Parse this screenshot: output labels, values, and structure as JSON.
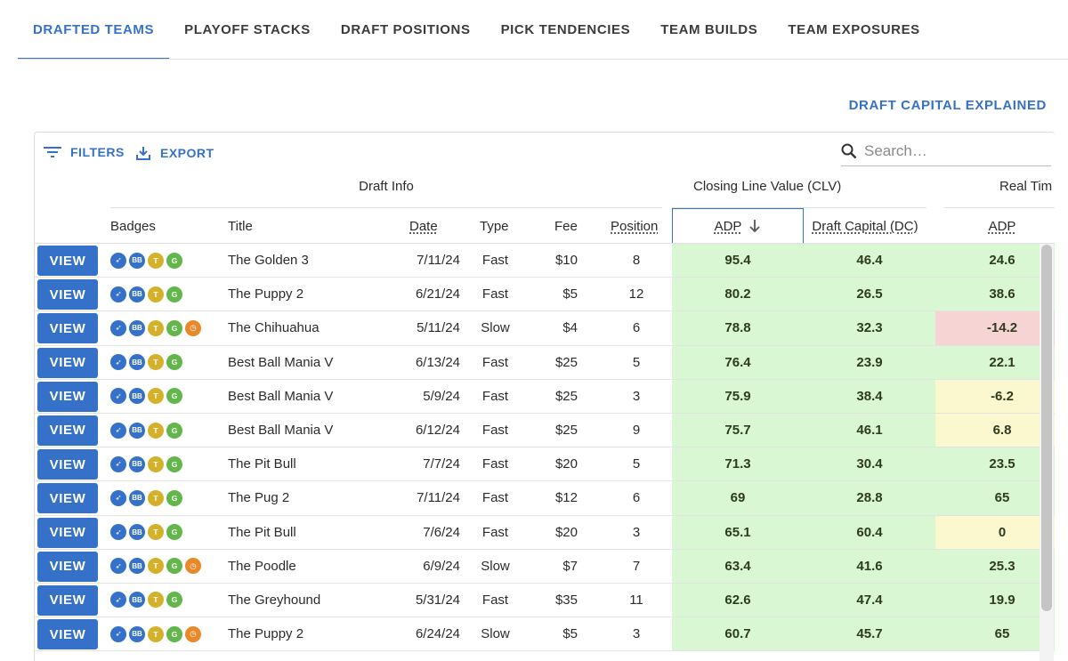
{
  "tabs": [
    {
      "label": "DRAFTED TEAMS",
      "active": true
    },
    {
      "label": "PLAYOFF STACKS",
      "active": false
    },
    {
      "label": "DRAFT POSITIONS",
      "active": false
    },
    {
      "label": "PICK TENDENCIES",
      "active": false
    },
    {
      "label": "TEAM BUILDS",
      "active": false
    },
    {
      "label": "TEAM EXPOSURES",
      "active": false
    }
  ],
  "draft_capital_link": "DRAFT CAPITAL EXPLAINED",
  "toolbar": {
    "filters_label": "FILTERS",
    "export_label": "EXPORT",
    "search_placeholder": "Search…"
  },
  "groups": {
    "draft_info": "Draft Info",
    "clv": "Closing Line Value (CLV)",
    "real_time": "Real Tim"
  },
  "columns": {
    "badges": "Badges",
    "title": "Title",
    "date": "Date",
    "type": "Type",
    "fee": "Fee",
    "position": "Position",
    "clv_adp": "ADP",
    "clv_dc": "Draft Capital (DC)",
    "rt_adp": "ADP"
  },
  "view_label": "VIEW",
  "badge_labels": {
    "bb": "BB",
    "t": "T",
    "g": "G"
  },
  "colors": {
    "accent": "#3571c8",
    "green_cell": "#d9f7d2",
    "red_cell": "#f6d4d4",
    "yellow_cell": "#fbf8cf"
  },
  "rows": [
    {
      "title": "The Golden 3",
      "date": "7/11/24",
      "type": "Fast",
      "fee": "$10",
      "position": "8",
      "clv_adp": "95.4",
      "clv_dc": "46.4",
      "rt_adp": "24.6",
      "rt_tone": "green",
      "clock": false
    },
    {
      "title": "The Puppy 2",
      "date": "6/21/24",
      "type": "Fast",
      "fee": "$5",
      "position": "12",
      "clv_adp": "80.2",
      "clv_dc": "26.5",
      "rt_adp": "38.6",
      "rt_tone": "green",
      "clock": false
    },
    {
      "title": "The Chihuahua",
      "date": "5/11/24",
      "type": "Slow",
      "fee": "$4",
      "position": "6",
      "clv_adp": "78.8",
      "clv_dc": "32.3",
      "rt_adp": "-14.2",
      "rt_tone": "red",
      "clock": true
    },
    {
      "title": "Best Ball Mania V",
      "date": "6/13/24",
      "type": "Fast",
      "fee": "$25",
      "position": "5",
      "clv_adp": "76.4",
      "clv_dc": "23.9",
      "rt_adp": "22.1",
      "rt_tone": "green",
      "clock": false
    },
    {
      "title": "Best Ball Mania V",
      "date": "5/9/24",
      "type": "Fast",
      "fee": "$25",
      "position": "3",
      "clv_adp": "75.9",
      "clv_dc": "38.4",
      "rt_adp": "-6.2",
      "rt_tone": "yellow",
      "clock": false
    },
    {
      "title": "Best Ball Mania V",
      "date": "6/12/24",
      "type": "Fast",
      "fee": "$25",
      "position": "9",
      "clv_adp": "75.7",
      "clv_dc": "46.1",
      "rt_adp": "6.8",
      "rt_tone": "yellow",
      "clock": false
    },
    {
      "title": "The Pit Bull",
      "date": "7/7/24",
      "type": "Fast",
      "fee": "$20",
      "position": "5",
      "clv_adp": "71.3",
      "clv_dc": "30.4",
      "rt_adp": "23.5",
      "rt_tone": "green",
      "clock": false
    },
    {
      "title": "The Pug 2",
      "date": "7/11/24",
      "type": "Fast",
      "fee": "$12",
      "position": "6",
      "clv_adp": "69",
      "clv_dc": "28.8",
      "rt_adp": "65",
      "rt_tone": "green",
      "clock": false
    },
    {
      "title": "The Pit Bull",
      "date": "7/6/24",
      "type": "Fast",
      "fee": "$20",
      "position": "3",
      "clv_adp": "65.1",
      "clv_dc": "60.4",
      "rt_adp": "0",
      "rt_tone": "yellow",
      "clock": false
    },
    {
      "title": "The Poodle",
      "date": "6/9/24",
      "type": "Slow",
      "fee": "$7",
      "position": "7",
      "clv_adp": "63.4",
      "clv_dc": "41.6",
      "rt_adp": "25.3",
      "rt_tone": "green",
      "clock": true
    },
    {
      "title": "The Greyhound",
      "date": "5/31/24",
      "type": "Fast",
      "fee": "$35",
      "position": "11",
      "clv_adp": "62.6",
      "clv_dc": "47.4",
      "rt_adp": "19.9",
      "rt_tone": "green",
      "clock": false
    },
    {
      "title": "The Puppy 2",
      "date": "6/24/24",
      "type": "Slow",
      "fee": "$5",
      "position": "3",
      "clv_adp": "60.7",
      "clv_dc": "45.7",
      "rt_adp": "65",
      "rt_tone": "green",
      "clock": true
    }
  ]
}
